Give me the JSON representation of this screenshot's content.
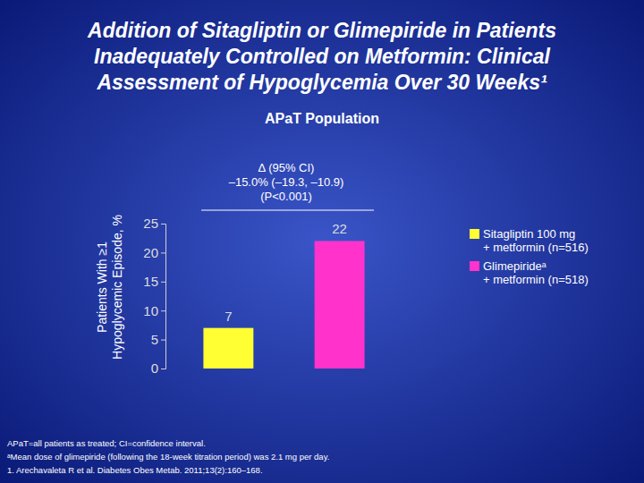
{
  "chart_data": {
    "type": "bar",
    "title": "Addition of Sitagliptin or Glimepiride in Patients\nInadequately Controlled on Metformin: Clinical\nAssessment of Hypoglycemia Over 30 Weeks¹",
    "subtitle": "APaT Population",
    "y_label": "Patients With ≥1\nHypoglycemic Episode, %",
    "annotations": [
      "Δ (95% CI)\n–15.0% (–19.3, –10.9)\n(P<0.001)"
    ],
    "footnotes": [
      "APaT=all patients as treated; CI=confidence interval.",
      "ᵃMean dose of glimepiride (following the 18-week titration period) was 2.1 mg per day.",
      "1. Arechavaleta R et al. Diabetes Obes Metab. 2011;13(2):160–168."
    ],
    "categories": [
      null
    ],
    "series": [
      {
        "name": "Sitagliptin 100 mg\n+ metformin (n=516)",
        "color": "#ffff33",
        "values": [
          7
        ]
      },
      {
        "name": "Glimepirideᵃ\n+ metformin (n=518)",
        "color": "#ff33cc",
        "values": [
          22
        ]
      }
    ],
    "ylim": [
      0,
      25
    ],
    "yticks": [
      0,
      5,
      10,
      15,
      20,
      25
    ],
    "data_labels": true,
    "legend": "right"
  }
}
